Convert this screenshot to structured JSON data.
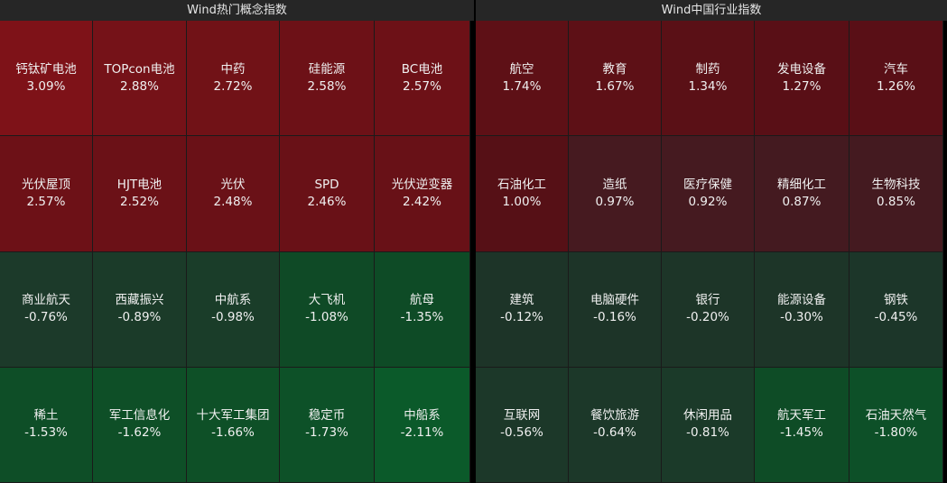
{
  "left": {
    "title": "Wind热门概念指数",
    "tiles": [
      {
        "name": "钙钛矿电池",
        "pct": "3.09%",
        "color": "#7e1218"
      },
      {
        "name": "TOPcon电池",
        "pct": "2.88%",
        "color": "#751218"
      },
      {
        "name": "中药",
        "pct": "2.72%",
        "color": "#711217"
      },
      {
        "name": "硅能源",
        "pct": "2.58%",
        "color": "#6d1117"
      },
      {
        "name": "BC电池",
        "pct": "2.57%",
        "color": "#6d1117"
      },
      {
        "name": "光伏屋顶",
        "pct": "2.57%",
        "color": "#6d1117"
      },
      {
        "name": "HJT电池",
        "pct": "2.52%",
        "color": "#6b1117"
      },
      {
        "name": "光伏",
        "pct": "2.48%",
        "color": "#6a1117"
      },
      {
        "name": "SPD",
        "pct": "2.46%",
        "color": "#691117"
      },
      {
        "name": "光伏逆变器",
        "pct": "2.42%",
        "color": "#681117"
      },
      {
        "name": "商业航天",
        "pct": "-0.76%",
        "color": "#1c3a2a"
      },
      {
        "name": "西藏振兴",
        "pct": "-0.89%",
        "color": "#1b3b29"
      },
      {
        "name": "中航系",
        "pct": "-0.98%",
        "color": "#1a3d29"
      },
      {
        "name": "大飞机",
        "pct": "-1.08%",
        "color": "#0f4a26"
      },
      {
        "name": "航母",
        "pct": "-1.35%",
        "color": "#0e4b26"
      },
      {
        "name": "稀土",
        "pct": "-1.53%",
        "color": "#0e4e27"
      },
      {
        "name": "军工信息化",
        "pct": "-1.62%",
        "color": "#0e4f27"
      },
      {
        "name": "十大军工集团",
        "pct": "-1.66%",
        "color": "#0e5027"
      },
      {
        "name": "稳定币",
        "pct": "-1.73%",
        "color": "#0d5128"
      },
      {
        "name": "中船系",
        "pct": "-2.11%",
        "color": "#0b5a2a"
      }
    ]
  },
  "right": {
    "title": "Wind中国行业指数",
    "tiles": [
      {
        "name": "航空",
        "pct": "1.74%",
        "color": "#5e1016"
      },
      {
        "name": "教育",
        "pct": "1.67%",
        "color": "#5d1016"
      },
      {
        "name": "制药",
        "pct": "1.34%",
        "color": "#5a1016"
      },
      {
        "name": "发电设备",
        "pct": "1.27%",
        "color": "#590f16"
      },
      {
        "name": "汽车",
        "pct": "1.26%",
        "color": "#590f16"
      },
      {
        "name": "石油化工",
        "pct": "1.00%",
        "color": "#561016"
      },
      {
        "name": "造纸",
        "pct": "0.97%",
        "color": "#461a20"
      },
      {
        "name": "医疗保健",
        "pct": "0.92%",
        "color": "#451a20"
      },
      {
        "name": "精细化工",
        "pct": "0.87%",
        "color": "#441a20"
      },
      {
        "name": "生物科技",
        "pct": "0.85%",
        "color": "#441a20"
      },
      {
        "name": "建筑",
        "pct": "-0.12%",
        "color": "#1d3428"
      },
      {
        "name": "电脑硬件",
        "pct": "-0.16%",
        "color": "#1d3428"
      },
      {
        "name": "银行",
        "pct": "-0.20%",
        "color": "#1d3528"
      },
      {
        "name": "能源设备",
        "pct": "-0.30%",
        "color": "#1d3528"
      },
      {
        "name": "钢铁",
        "pct": "-0.45%",
        "color": "#1c3629"
      },
      {
        "name": "互联网",
        "pct": "-0.56%",
        "color": "#1c3829"
      },
      {
        "name": "餐饮旅游",
        "pct": "-0.64%",
        "color": "#1c3829"
      },
      {
        "name": "休闲用品",
        "pct": "-0.81%",
        "color": "#1b3a29"
      },
      {
        "name": "航天军工",
        "pct": "-1.45%",
        "color": "#0e4c26"
      },
      {
        "name": "石油天然气",
        "pct": "-1.80%",
        "color": "#0d5028"
      }
    ]
  }
}
